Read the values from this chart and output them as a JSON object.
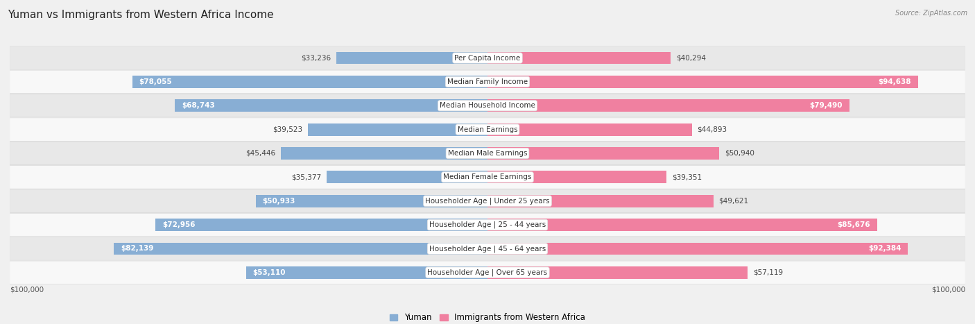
{
  "title": "Yuman vs Immigrants from Western Africa Income",
  "source": "Source: ZipAtlas.com",
  "categories": [
    "Per Capita Income",
    "Median Family Income",
    "Median Household Income",
    "Median Earnings",
    "Median Male Earnings",
    "Median Female Earnings",
    "Householder Age | Under 25 years",
    "Householder Age | 25 - 44 years",
    "Householder Age | 45 - 64 years",
    "Householder Age | Over 65 years"
  ],
  "yuman_values": [
    33236,
    78055,
    68743,
    39523,
    45446,
    35377,
    50933,
    72956,
    82139,
    53110
  ],
  "immigrant_values": [
    40294,
    94638,
    79490,
    44893,
    50940,
    39351,
    49621,
    85676,
    92384,
    57119
  ],
  "yuman_color": "#88aed4",
  "immigrant_color": "#f080a0",
  "yuman_light_color": "#aac8e8",
  "immigrant_light_color": "#f4b8cc",
  "max_value": 100000,
  "bar_height": 0.52,
  "background_color": "#f0f0f0",
  "row_colors": [
    "#e8e8e8",
    "#f8f8f8"
  ],
  "title_fontsize": 11,
  "label_fontsize": 7.5,
  "value_fontsize": 7.5,
  "legend_yuman_color": "#88aed4",
  "legend_immigrant_color": "#f080a0",
  "yuman_white_threshold": 50000,
  "immigrant_white_threshold": 75000
}
